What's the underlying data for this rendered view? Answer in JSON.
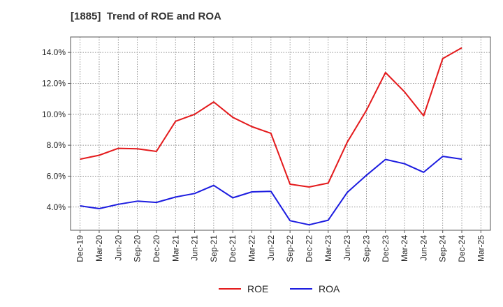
{
  "chart_data": {
    "type": "line",
    "title": "[1885]  Trend of ROE and ROA",
    "xlabel": "",
    "ylabel": "",
    "x": [
      "Dec-19",
      "Mar-20",
      "Jun-20",
      "Sep-20",
      "Dec-20",
      "Mar-21",
      "Jun-21",
      "Sep-21",
      "Dec-21",
      "Mar-22",
      "Jun-22",
      "Sep-22",
      "Dec-22",
      "Mar-23",
      "Jun-23",
      "Sep-23",
      "Dec-23",
      "Mar-24",
      "Jun-24",
      "Sep-24",
      "Dec-24",
      "Mar-25"
    ],
    "yticks": [
      "4.0%",
      "6.0%",
      "8.0%",
      "10.0%",
      "12.0%",
      "14.0%"
    ],
    "ylim": [
      2.5,
      15.0
    ],
    "grid": true,
    "legend_position": "bottom",
    "series": [
      {
        "name": "ROE",
        "color": "#e41a1c",
        "values": [
          7.1,
          7.35,
          7.8,
          7.77,
          7.6,
          9.55,
          10.0,
          10.8,
          9.8,
          9.2,
          8.77,
          5.48,
          5.3,
          5.55,
          8.2,
          10.25,
          12.7,
          11.45,
          9.9,
          13.6,
          14.3,
          null
        ]
      },
      {
        "name": "ROA",
        "color": "#1c1ce0",
        "values": [
          4.08,
          3.9,
          4.18,
          4.38,
          4.3,
          4.65,
          4.88,
          5.4,
          4.6,
          4.98,
          5.02,
          3.12,
          2.85,
          3.15,
          4.95,
          6.05,
          7.08,
          6.8,
          6.25,
          7.28,
          7.1,
          null
        ]
      }
    ]
  }
}
